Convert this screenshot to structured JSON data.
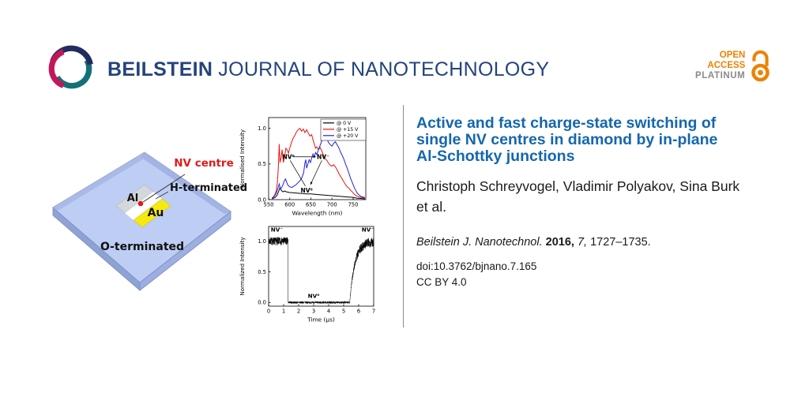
{
  "header": {
    "brand_bold": "BEILSTEIN",
    "brand_rest": "JOURNAL OF NANOTECHNOLOGY",
    "open_access": {
      "line1": "OPEN",
      "line2": "ACCESS",
      "line3": "PLATINUM"
    }
  },
  "diagram": {
    "labels": {
      "nv_centre": "NV centre",
      "h_terminated": "H-terminated",
      "al": "Al",
      "au": "Au",
      "o_terminated": "O-terminated"
    }
  },
  "article": {
    "title": "Active and fast charge-state switching of single NV centres in diamond by in-plane Al-Schottky junctions",
    "title_lines": [
      "Active and fast charge-state switching of",
      "single NV centres in diamond by in-plane",
      "Al-Schottky junctions"
    ],
    "authors": "Christoph Schreyvogel, Vladimir Polyakov, Sina Burk et al.",
    "authors_lines": [
      "Christoph Schreyvogel, Vladimir Polyakov, Sina Burk",
      "et al."
    ],
    "citation": {
      "journal": "Beilstein J. Nanotechnol.",
      "year": "2016,",
      "volume": "7,",
      "pages": "1727–1735."
    },
    "doi": "doi:10.3762/bjnano.7.165",
    "license": "CC BY 4.0"
  },
  "colors": {
    "brand_navy": "#24447c",
    "title_blue": "#1467ae",
    "oa_orange": "#ee8100",
    "platinum_gray": "#8a8a8a",
    "logo_navy": "#232c5f",
    "logo_teal": "#137077",
    "logo_crimson": "#c2175b",
    "nv_red": "#e01b1b",
    "chart_red": "#e8150d",
    "chart_blue": "#2222dd",
    "diamond_blue": "#bdcdf3",
    "diamond_edge": "#8094c8",
    "gold": "#f6e90f",
    "aluminium_gray": "#d4d8dc"
  },
  "chart_data": [
    {
      "type": "line",
      "title": "",
      "xlabel": "Wavelength (nm)",
      "ylabel": "Normalised Intensity",
      "xlim": [
        550,
        780
      ],
      "ylim": [
        0,
        1.15
      ],
      "xticks": [
        550,
        600,
        650,
        700,
        750
      ],
      "yticks": [
        0.0,
        0.5,
        1.0
      ],
      "legend_position": "top-right",
      "series": [
        {
          "name": "@ 0 V",
          "color": "#000000",
          "points": [
            [
              558,
              0.01
            ],
            [
              565,
              0.03
            ],
            [
              570,
              0.06
            ],
            [
              574,
              0.12
            ],
            [
              577,
              0.17
            ],
            [
              580,
              0.13
            ],
            [
              584,
              0.11
            ],
            [
              588,
              0.12
            ],
            [
              592,
              0.11
            ],
            [
              600,
              0.1
            ],
            [
              610,
              0.095
            ],
            [
              620,
              0.09
            ],
            [
              630,
              0.085
            ],
            [
              640,
              0.08
            ],
            [
              650,
              0.08
            ],
            [
              660,
              0.075
            ],
            [
              670,
              0.07
            ],
            [
              680,
              0.065
            ],
            [
              690,
              0.06
            ],
            [
              700,
              0.055
            ],
            [
              710,
              0.05
            ],
            [
              720,
              0.045
            ],
            [
              730,
              0.04
            ],
            [
              740,
              0.035
            ],
            [
              750,
              0.03
            ],
            [
              760,
              0.02
            ],
            [
              770,
              0.015
            ],
            [
              778,
              0.01
            ]
          ]
        },
        {
          "name": "@ +15 V",
          "color": "#e8150d",
          "points": [
            [
              558,
              0.02
            ],
            [
              564,
              0.06
            ],
            [
              568,
              0.12
            ],
            [
              571,
              0.25
            ],
            [
              573,
              0.45
            ],
            [
              575,
              0.78
            ],
            [
              577,
              0.52
            ],
            [
              580,
              0.6
            ],
            [
              582,
              0.7
            ],
            [
              585,
              0.52
            ],
            [
              588,
              0.6
            ],
            [
              591,
              0.72
            ],
            [
              594,
              0.7
            ],
            [
              597,
              0.65
            ],
            [
              600,
              0.72
            ],
            [
              604,
              0.8
            ],
            [
              608,
              0.86
            ],
            [
              612,
              0.9
            ],
            [
              616,
              0.95
            ],
            [
              620,
              0.98
            ],
            [
              624,
              1.0
            ],
            [
              628,
              0.96
            ],
            [
              632,
              0.99
            ],
            [
              636,
              0.94
            ],
            [
              640,
              0.98
            ],
            [
              644,
              0.93
            ],
            [
              648,
              0.89
            ],
            [
              652,
              0.91
            ],
            [
              655,
              0.84
            ],
            [
              658,
              0.78
            ],
            [
              661,
              0.72
            ],
            [
              664,
              0.74
            ],
            [
              668,
              0.7
            ],
            [
              672,
              0.73
            ],
            [
              676,
              0.68
            ],
            [
              680,
              0.62
            ],
            [
              684,
              0.57
            ],
            [
              688,
              0.55
            ],
            [
              692,
              0.51
            ],
            [
              696,
              0.48
            ],
            [
              700,
              0.47
            ],
            [
              704,
              0.49
            ],
            [
              708,
              0.46
            ],
            [
              712,
              0.42
            ],
            [
              716,
              0.37
            ],
            [
              720,
              0.33
            ],
            [
              724,
              0.29
            ],
            [
              728,
              0.25
            ],
            [
              732,
              0.21
            ],
            [
              736,
              0.18
            ],
            [
              740,
              0.16
            ],
            [
              744,
              0.13
            ],
            [
              748,
              0.11
            ],
            [
              752,
              0.08
            ],
            [
              756,
              0.06
            ],
            [
              762,
              0.04
            ],
            [
              770,
              0.03
            ],
            [
              778,
              0.02
            ]
          ]
        },
        {
          "name": "@ +20 V",
          "color": "#2222dd",
          "points": [
            [
              558,
              0.02
            ],
            [
              564,
              0.05
            ],
            [
              568,
              0.09
            ],
            [
              572,
              0.16
            ],
            [
              575,
              0.22
            ],
            [
              578,
              0.15
            ],
            [
              581,
              0.17
            ],
            [
              584,
              0.21
            ],
            [
              587,
              0.26
            ],
            [
              590,
              0.29
            ],
            [
              593,
              0.24
            ],
            [
              596,
              0.2
            ],
            [
              600,
              0.18
            ],
            [
              605,
              0.17
            ],
            [
              610,
              0.19
            ],
            [
              615,
              0.21
            ],
            [
              620,
              0.24
            ],
            [
              625,
              0.27
            ],
            [
              629,
              0.31
            ],
            [
              633,
              0.38
            ],
            [
              636,
              0.52
            ],
            [
              638,
              0.56
            ],
            [
              640,
              0.44
            ],
            [
              643,
              0.5
            ],
            [
              646,
              0.56
            ],
            [
              649,
              0.52
            ],
            [
              652,
              0.58
            ],
            [
              655,
              0.64
            ],
            [
              658,
              0.6
            ],
            [
              661,
              0.66
            ],
            [
              664,
              0.63
            ],
            [
              668,
              0.7
            ],
            [
              672,
              0.76
            ],
            [
              676,
              0.83
            ],
            [
              680,
              0.9
            ],
            [
              683,
              0.96
            ],
            [
              686,
              0.92
            ],
            [
              689,
              0.84
            ],
            [
              692,
              0.8
            ],
            [
              696,
              0.77
            ],
            [
              700,
              0.75
            ],
            [
              704,
              0.79
            ],
            [
              708,
              0.81
            ],
            [
              712,
              0.77
            ],
            [
              716,
              0.73
            ],
            [
              720,
              0.67
            ],
            [
              724,
              0.62
            ],
            [
              728,
              0.57
            ],
            [
              732,
              0.5
            ],
            [
              736,
              0.44
            ],
            [
              740,
              0.37
            ],
            [
              744,
              0.3
            ],
            [
              748,
              0.24
            ],
            [
              752,
              0.18
            ],
            [
              756,
              0.13
            ],
            [
              760,
              0.09
            ],
            [
              765,
              0.06
            ],
            [
              770,
              0.04
            ],
            [
              778,
              0.03
            ]
          ]
        }
      ],
      "annotations": [
        {
          "text": "NV⁰",
          "x": 597,
          "y": 0.6,
          "color": "#e8150d"
        },
        {
          "text": "NV⁻",
          "x": 679,
          "y": 0.6,
          "color": "#2222dd"
        },
        {
          "text": "NV⁰",
          "x": 640,
          "y": 0.13,
          "color": "#000000"
        }
      ],
      "arrows": [
        {
          "x1": 608,
          "y1": 0.6,
          "x2": 662,
          "y2": 0.6,
          "head": true
        },
        {
          "x1": 601,
          "y1": 0.55,
          "x2": 637,
          "y2": 0.19,
          "head": false
        },
        {
          "x1": 676,
          "y1": 0.55,
          "x2": 649,
          "y2": 0.21,
          "head": true
        }
      ]
    },
    {
      "type": "line",
      "title": "",
      "xlabel": "Time (µs)",
      "ylabel": "Normalized Intensity",
      "xlim": [
        0,
        7
      ],
      "ylim": [
        0,
        1.2
      ],
      "xticks": [
        0,
        1,
        2,
        3,
        4,
        5,
        6,
        7
      ],
      "yticks": [
        0.0,
        0.5,
        1.0
      ],
      "signal": {
        "high_level": 1.0,
        "low_level": 0.0,
        "drop_time": 1.3,
        "rise_time": 5.4,
        "rise_tau": 0.35,
        "noise_high": 0.065,
        "noise_low": 0.018,
        "color": "#000000"
      },
      "annotations": [
        {
          "text": "NV⁻",
          "x": 0.55,
          "y": 1.19,
          "color": "#000000"
        },
        {
          "text": "NV⁰",
          "x": 3.0,
          "y": 0.11,
          "color": "#000000"
        },
        {
          "text": "NV⁻",
          "x": 6.6,
          "y": 1.19,
          "color": "#000000"
        }
      ]
    }
  ]
}
